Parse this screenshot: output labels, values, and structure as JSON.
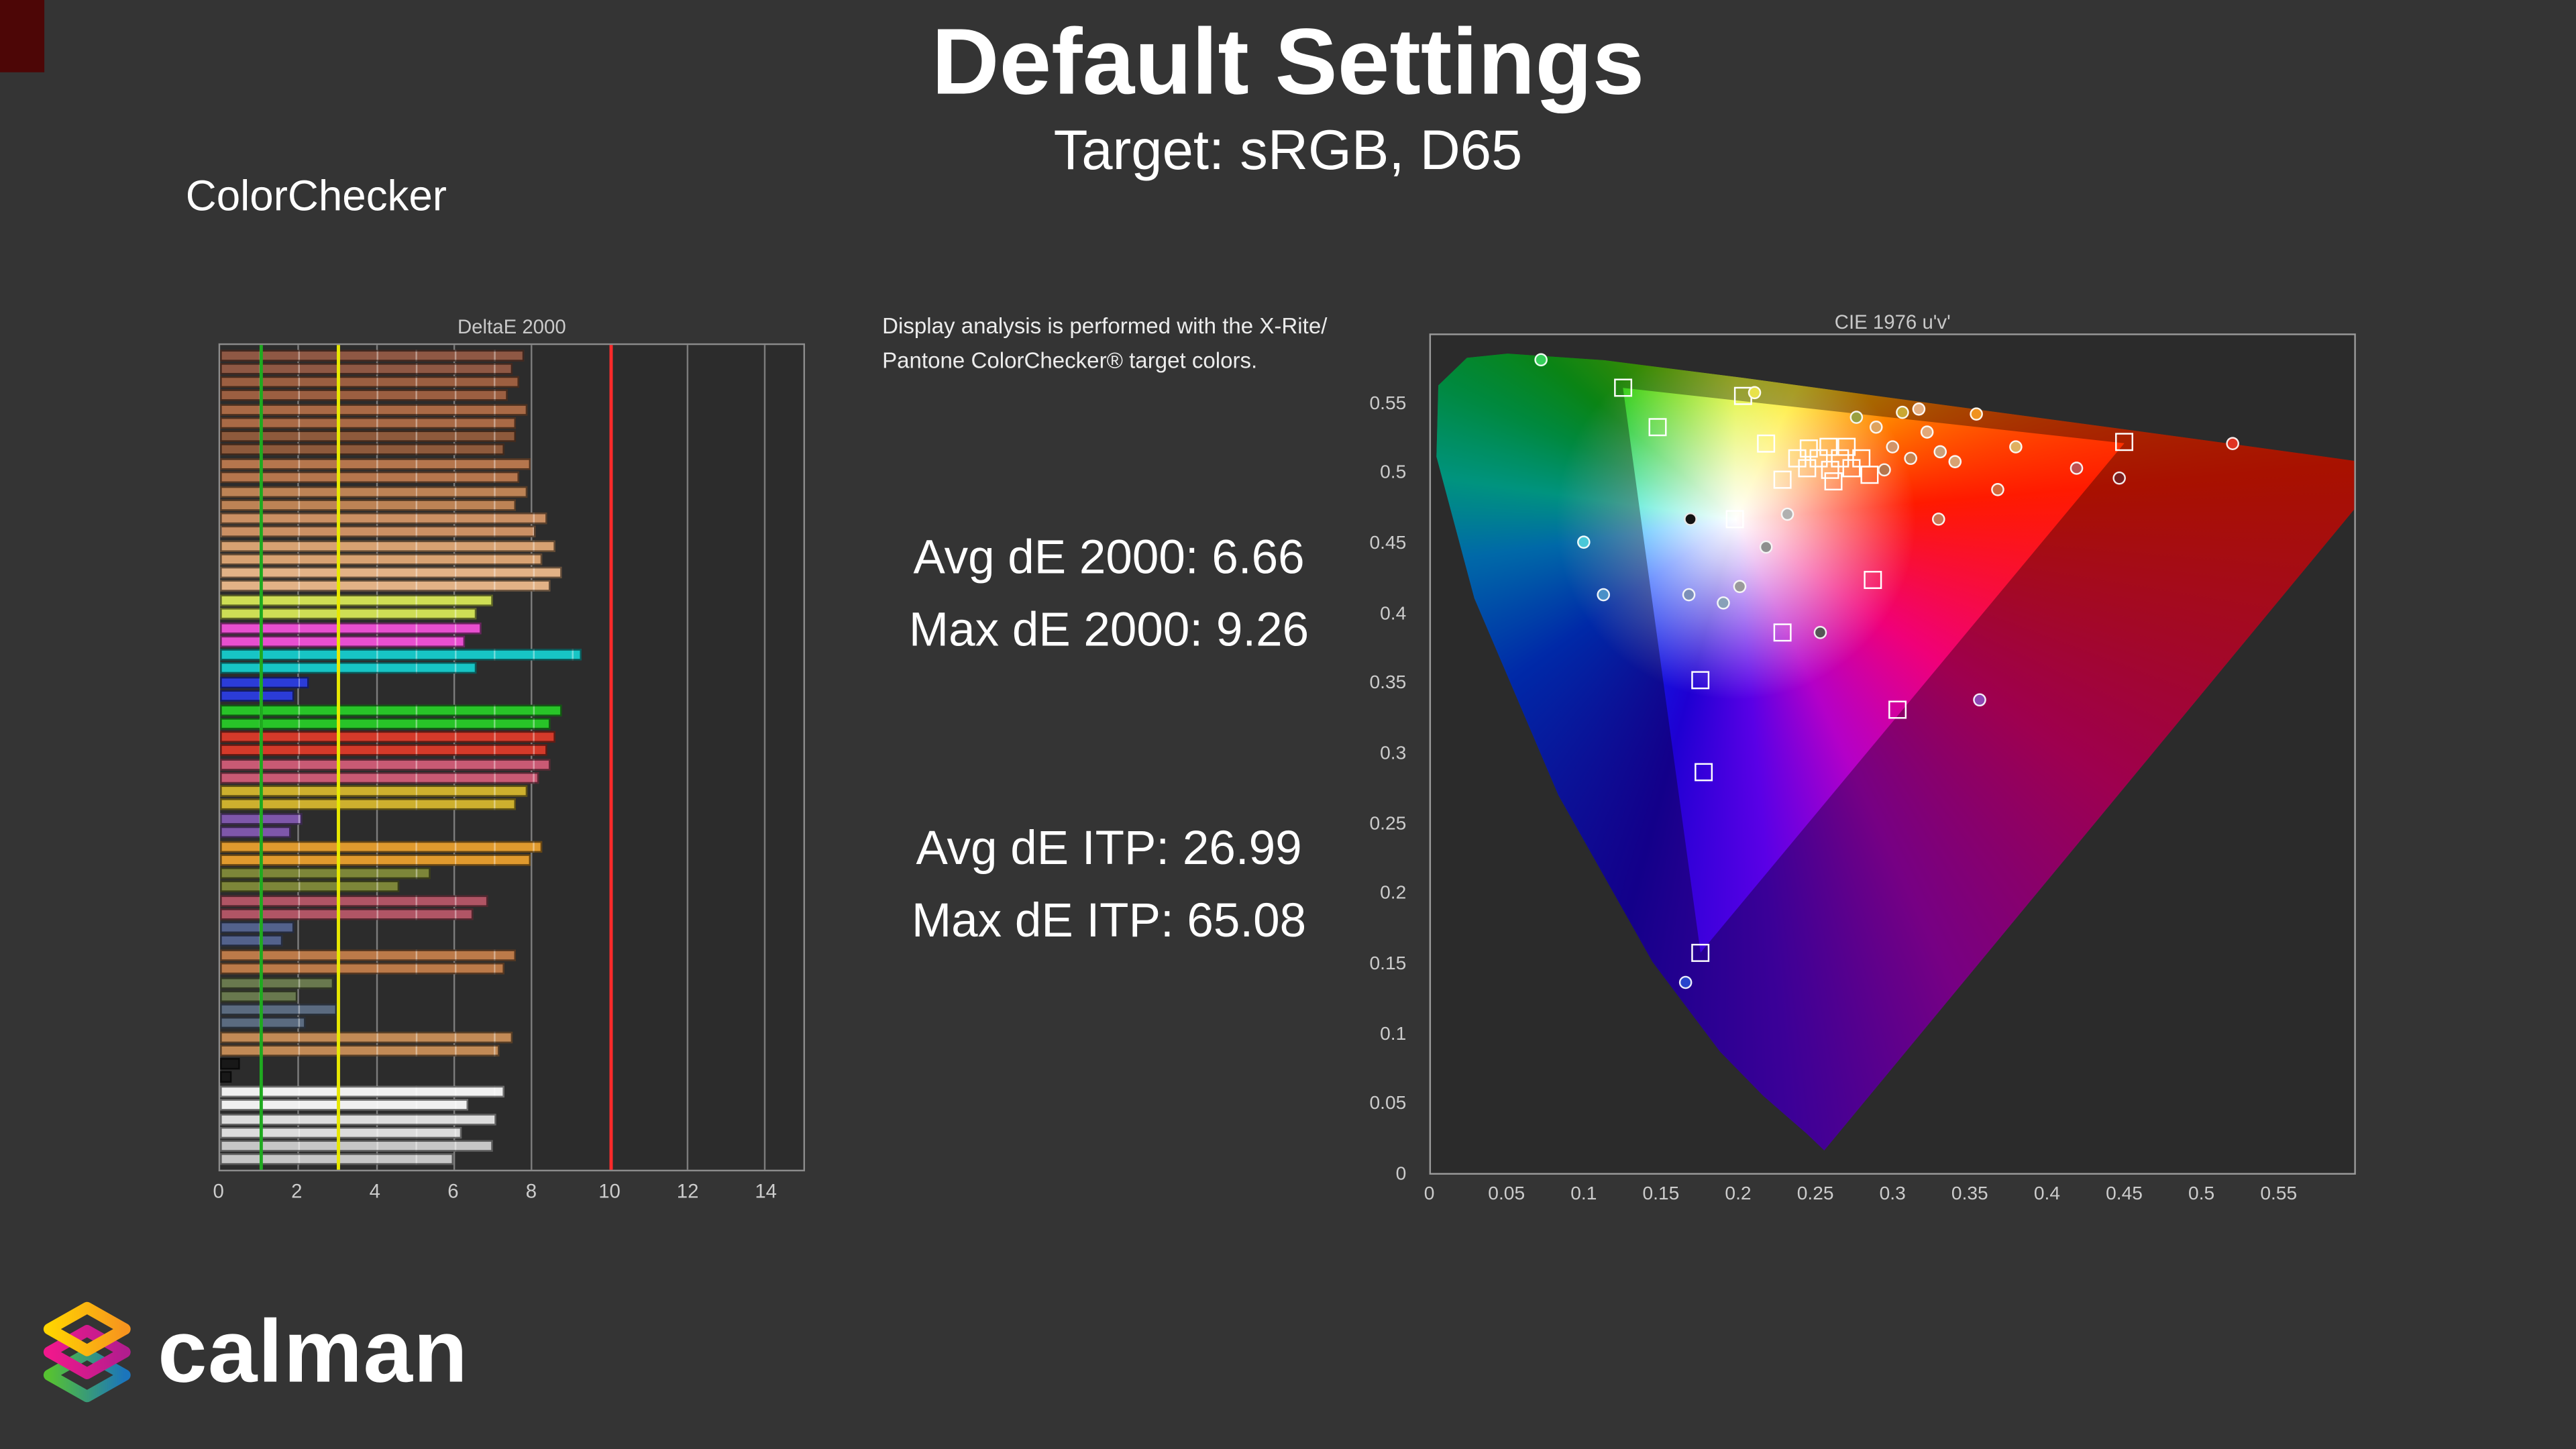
{
  "header": {
    "title": "Default Settings",
    "subtitle": "Target: sRGB, D65"
  },
  "left": {
    "section_label": "ColorChecker"
  },
  "analysis_note": {
    "line1": "Display analysis is performed with the X-Rite/",
    "line2": "Pantone ColorChecker® target colors."
  },
  "stats": {
    "avg_de2000_label": "Avg dE 2000:",
    "avg_de2000_value": "6.66",
    "max_de2000_label": "Max dE 2000:",
    "max_de2000_value": "9.26",
    "avg_deitp_label": "Avg dE ITP:",
    "avg_deitp_value": "26.99",
    "max_deitp_label": "Max dE ITP:",
    "max_deitp_value": "65.08"
  },
  "logo": {
    "text": "calman"
  },
  "colors": {
    "background": "#343434",
    "panel": "#2c2c2c",
    "ref_green": "#1faa1f",
    "ref_yellow": "#e8e800",
    "ref_red": "#ff2a2a"
  },
  "chart_data": [
    {
      "type": "bar",
      "title": "DeltaE 2000",
      "orientation": "horizontal",
      "xlim": [
        0,
        15
      ],
      "xticks": [
        0,
        2,
        4,
        6,
        8,
        10,
        12,
        14
      ],
      "avg_dE2000": 6.66,
      "max_dE2000": 9.26,
      "reference_lines": [
        {
          "value": 1,
          "color": "#1faa1f"
        },
        {
          "value": 3,
          "color": "#e8e800"
        },
        {
          "value": 10,
          "color": "#ff2a2a"
        }
      ],
      "patches": [
        {
          "color": "#8f5844",
          "values": [
            7.8,
            7.5
          ]
        },
        {
          "color": "#9c5f41",
          "values": [
            7.7,
            7.4
          ]
        },
        {
          "color": "#a96a46",
          "values": [
            7.9,
            7.6
          ]
        },
        {
          "color": "#8e5a3c",
          "values": [
            7.6,
            7.3
          ]
        },
        {
          "color": "#b5764d",
          "values": [
            8.0,
            7.7
          ]
        },
        {
          "color": "#bd8355",
          "values": [
            7.9,
            7.6
          ]
        },
        {
          "color": "#cb9064",
          "values": [
            8.4,
            8.1
          ]
        },
        {
          "color": "#d8a272",
          "values": [
            8.6,
            8.3
          ]
        },
        {
          "color": "#e2b286",
          "values": [
            8.8,
            8.5
          ]
        },
        {
          "color": "#cede55",
          "values": [
            7.0,
            6.6
          ]
        },
        {
          "color": "#e84fd0",
          "values": [
            6.7,
            6.3
          ]
        },
        {
          "color": "#17c5c5",
          "values": [
            9.3,
            6.6
          ]
        },
        {
          "color": "#2b3cd8",
          "values": [
            2.3,
            1.9
          ]
        },
        {
          "color": "#28c428",
          "values": [
            8.8,
            8.5
          ]
        },
        {
          "color": "#d43a2a",
          "values": [
            8.6,
            8.4
          ]
        },
        {
          "color": "#c95a74",
          "values": [
            8.5,
            8.2
          ]
        },
        {
          "color": "#cdb02e",
          "values": [
            7.9,
            7.6
          ]
        },
        {
          "color": "#7e57aa",
          "values": [
            2.1,
            1.8
          ]
        },
        {
          "color": "#e09a2e",
          "values": [
            8.3,
            8.0
          ]
        },
        {
          "color": "#7d8639",
          "values": [
            5.4,
            4.6
          ]
        },
        {
          "color": "#b05565",
          "values": [
            6.9,
            6.5
          ]
        },
        {
          "color": "#53628c",
          "values": [
            1.9,
            1.6
          ]
        },
        {
          "color": "#bc7a49",
          "values": [
            7.6,
            7.3
          ]
        },
        {
          "color": "#69794e",
          "values": [
            2.9,
            2.0
          ]
        },
        {
          "color": "#5b6b80",
          "values": [
            3.0,
            2.2
          ]
        },
        {
          "color": "#c28a56",
          "values": [
            7.5,
            7.2
          ]
        },
        {
          "color": "#181818",
          "values": [
            0.5,
            0.3
          ]
        },
        {
          "color": "#f0f0f0",
          "values": [
            7.3,
            6.4
          ]
        },
        {
          "color": "#dcdcdc",
          "values": [
            7.1,
            6.2
          ]
        },
        {
          "color": "#c6c6c6",
          "values": [
            7.0,
            6.0
          ]
        }
      ]
    },
    {
      "type": "scatter",
      "title": "CIE 1976 u'v'",
      "xlim": [
        0,
        0.6
      ],
      "ylim": [
        0,
        0.6
      ],
      "xticks": [
        "0",
        "0.05",
        "0.1",
        "0.15",
        "0.2",
        "0.25",
        "0.3",
        "0.35",
        "0.4",
        "0.45",
        "0.5",
        "0.55"
      ],
      "yticks": [
        "0.55",
        "0.5",
        "0.45",
        "0.4",
        "0.35",
        "0.3",
        "0.25",
        "0.2",
        "0.15",
        "0.1",
        "0.05",
        "0"
      ],
      "white_point": [
        0.1978,
        0.4683
      ],
      "srgb_primaries": {
        "red": [
          0.4507,
          0.5229
        ],
        "green": [
          0.125,
          0.5625
        ],
        "blue": [
          0.1754,
          0.1579
        ]
      },
      "locus_polygon": [
        [
          42.6,
          97.3
        ],
        [
          40.7,
          95.3
        ],
        [
          36.0,
          90.8
        ],
        [
          31.3,
          85.5
        ],
        [
          24.0,
          74.8
        ],
        [
          13.8,
          54.9
        ],
        [
          4.7,
          31.4
        ],
        [
          0.6,
          14.5
        ],
        [
          0.8,
          6.0
        ],
        [
          3.9,
          2.7
        ],
        [
          8.3,
          2.2
        ],
        [
          18.8,
          3.0
        ],
        [
          33.8,
          5.1
        ],
        [
          55.3,
          8.3
        ],
        [
          78.2,
          11.7
        ],
        [
          92.8,
          13.9
        ],
        [
          103.9,
          15.6
        ]
      ],
      "srgb_polygon": [
        [
          75.1,
          12.9
        ],
        [
          20.8,
          6.3
        ],
        [
          29.2,
          73.7
        ]
      ],
      "targets": [
        [
          0.125,
          0.562
        ],
        [
          0.451,
          0.523
        ],
        [
          0.175,
          0.158
        ],
        [
          0.198,
          0.468
        ],
        [
          0.147,
          0.534
        ],
        [
          0.203,
          0.556
        ],
        [
          0.228,
          0.496
        ],
        [
          0.287,
          0.425
        ],
        [
          0.229,
          0.387
        ],
        [
          0.175,
          0.353
        ],
        [
          0.303,
          0.332
        ],
        [
          0.177,
          0.287
        ],
        [
          0.245,
          0.505
        ],
        [
          0.252,
          0.512
        ],
        [
          0.259,
          0.503
        ],
        [
          0.266,
          0.512
        ],
        [
          0.273,
          0.505
        ],
        [
          0.28,
          0.512
        ],
        [
          0.258,
          0.52
        ],
        [
          0.27,
          0.52
        ],
        [
          0.246,
          0.519
        ],
        [
          0.262,
          0.495
        ],
        [
          0.238,
          0.512
        ],
        [
          0.285,
          0.5
        ],
        [
          0.218,
          0.522
        ]
      ],
      "measured": [
        [
          0.072,
          0.582,
          "#35d05a"
        ],
        [
          0.21,
          0.559,
          "#e8e24a"
        ],
        [
          0.099,
          0.452,
          "#49c8d8"
        ],
        [
          0.112,
          0.414,
          "#4a90c8"
        ],
        [
          0.168,
          0.414,
          "#7b8fb8"
        ],
        [
          0.19,
          0.408,
          "#88a0b8"
        ],
        [
          0.201,
          0.42,
          "#9a9a9a"
        ],
        [
          0.169,
          0.468,
          "#141414"
        ],
        [
          0.166,
          0.137,
          "#2744cc"
        ],
        [
          0.354,
          0.543,
          "#f0921e"
        ],
        [
          0.368,
          0.489,
          "#d2683c"
        ],
        [
          0.447,
          0.498,
          "#7a1f1f"
        ],
        [
          0.521,
          0.522,
          "#e03422"
        ],
        [
          0.357,
          0.339,
          "#8f46b4"
        ],
        [
          0.253,
          0.387,
          "#565656"
        ],
        [
          0.3,
          0.52,
          "#d29468"
        ],
        [
          0.312,
          0.512,
          "#c58452"
        ],
        [
          0.322,
          0.531,
          "#e2a878"
        ],
        [
          0.331,
          0.517,
          "#caa07a"
        ],
        [
          0.295,
          0.504,
          "#b5764d"
        ],
        [
          0.341,
          0.509,
          "#d8a272"
        ],
        [
          0.317,
          0.547,
          "#e6b184"
        ],
        [
          0.289,
          0.534,
          "#dfa35e"
        ],
        [
          0.306,
          0.545,
          "#caa832"
        ],
        [
          0.276,
          0.541,
          "#9aa040"
        ],
        [
          0.232,
          0.472,
          "#b0b0b0"
        ],
        [
          0.218,
          0.448,
          "#8f8f8f"
        ],
        [
          0.33,
          0.468,
          "#c87858"
        ],
        [
          0.38,
          0.52,
          "#e0b060"
        ],
        [
          0.42,
          0.505,
          "#c05050"
        ]
      ]
    }
  ]
}
